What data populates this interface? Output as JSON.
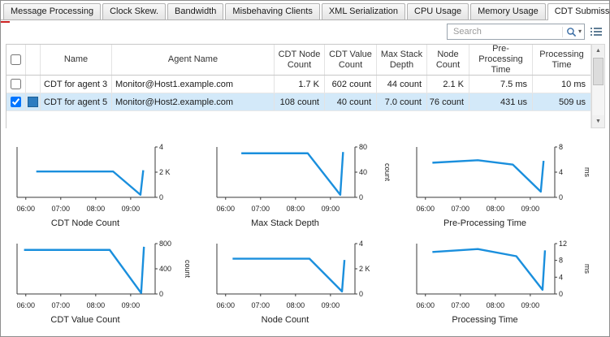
{
  "colors": {
    "series": "#1a8fdd",
    "swatch": "#2d7cc0",
    "selected_row": "#d3e9f9",
    "accent_red": "#cc2222"
  },
  "tabs": [
    {
      "label": "Message Processing",
      "active": false
    },
    {
      "label": "Clock Skew.",
      "active": false
    },
    {
      "label": "Bandwidth",
      "active": false
    },
    {
      "label": "Misbehaving Clients",
      "active": false
    },
    {
      "label": "XML Serialization",
      "active": false
    },
    {
      "label": "CPU Usage",
      "active": false
    },
    {
      "label": "Memory Usage",
      "active": false
    },
    {
      "label": "CDT Submission",
      "active": true
    }
  ],
  "toolbar": {
    "search_placeholder": "Search"
  },
  "table": {
    "columns": [
      "Name",
      "Agent Name",
      "CDT Node Count",
      "CDT Value Count",
      "Max Stack Depth",
      "Node Count",
      "Pre-Processing Time",
      "Processing Time"
    ],
    "rows": [
      {
        "checked": false,
        "selected": false,
        "name": "CDT for agent 3",
        "agent": "Monitor@Host1.example.com",
        "values": [
          "1.7 K",
          "602 count",
          "44 count",
          "2.1 K",
          "7.5 ms",
          "10 ms"
        ]
      },
      {
        "checked": true,
        "selected": true,
        "swatch_color": "#2d7cc0",
        "name": "CDT for agent 5",
        "agent": "Monitor@Host2.example.com",
        "values": [
          "108 count",
          "40 count",
          "7.0 count",
          "76 count",
          "431 us",
          "509 us"
        ]
      }
    ]
  },
  "chart_data": [
    {
      "type": "line",
      "title": "CDT Node Count",
      "x": [
        6.3,
        8.5,
        9.28,
        9.36
      ],
      "y": [
        2.05,
        2.05,
        0.2,
        2.15
      ],
      "xlim": [
        5.75,
        9.7
      ],
      "ylim": [
        0,
        4
      ],
      "xticks": [
        {
          "v": 6,
          "label": "06:00"
        },
        {
          "v": 7,
          "label": "07:00"
        },
        {
          "v": 8,
          "label": "08:00"
        },
        {
          "v": 9,
          "label": "09:00"
        }
      ],
      "yticks": [
        {
          "v": 0,
          "label": "0"
        },
        {
          "v": 2,
          "label": "2 K"
        },
        {
          "v": 4,
          "label": "4"
        }
      ],
      "ylabel": ""
    },
    {
      "type": "line",
      "title": "Max Stack Depth",
      "x": [
        6.45,
        8.35,
        9.28,
        9.36
      ],
      "y": [
        70,
        70,
        4,
        72
      ],
      "xlim": [
        5.75,
        9.7
      ],
      "ylim": [
        0,
        80
      ],
      "xticks": [
        {
          "v": 6,
          "label": "06:00"
        },
        {
          "v": 7,
          "label": "07:00"
        },
        {
          "v": 8,
          "label": "08:00"
        },
        {
          "v": 9,
          "label": "09:00"
        }
      ],
      "yticks": [
        {
          "v": 0,
          "label": "0"
        },
        {
          "v": 40,
          "label": "40"
        },
        {
          "v": 80,
          "label": "80"
        }
      ],
      "ylabel": "count"
    },
    {
      "type": "line",
      "title": "Pre-Processing Time",
      "x": [
        6.2,
        7.5,
        8.5,
        9.3,
        9.38
      ],
      "y": [
        5.5,
        5.9,
        5.2,
        0.9,
        5.8
      ],
      "xlim": [
        5.75,
        9.7
      ],
      "ylim": [
        0,
        8
      ],
      "xticks": [
        {
          "v": 6,
          "label": "06:00"
        },
        {
          "v": 7,
          "label": "07:00"
        },
        {
          "v": 8,
          "label": "08:00"
        },
        {
          "v": 9,
          "label": "09:00"
        }
      ],
      "yticks": [
        {
          "v": 0,
          "label": "0"
        },
        {
          "v": 4,
          "label": "4"
        },
        {
          "v": 8,
          "label": "8"
        }
      ],
      "ylabel": "ms"
    },
    {
      "type": "line",
      "title": "CDT Value Count",
      "x": [
        5.95,
        8.4,
        9.3,
        9.38
      ],
      "y": [
        700,
        700,
        15,
        750
      ],
      "xlim": [
        5.75,
        9.7
      ],
      "ylim": [
        0,
        800
      ],
      "xticks": [
        {
          "v": 6,
          "label": "06:00"
        },
        {
          "v": 7,
          "label": "07:00"
        },
        {
          "v": 8,
          "label": "08:00"
        },
        {
          "v": 9,
          "label": "09:00"
        }
      ],
      "yticks": [
        {
          "v": 0,
          "label": "0"
        },
        {
          "v": 400,
          "label": "400"
        },
        {
          "v": 800,
          "label": "800"
        }
      ],
      "ylabel": "count"
    },
    {
      "type": "line",
      "title": "Node Count",
      "x": [
        6.2,
        8.4,
        9.33,
        9.4
      ],
      "y": [
        2.8,
        2.8,
        0.2,
        2.7
      ],
      "xlim": [
        5.75,
        9.7
      ],
      "ylim": [
        0,
        4
      ],
      "xticks": [
        {
          "v": 6,
          "label": "06:00"
        },
        {
          "v": 7,
          "label": "07:00"
        },
        {
          "v": 8,
          "label": "08:00"
        },
        {
          "v": 9,
          "label": "09:00"
        }
      ],
      "yticks": [
        {
          "v": 0,
          "label": "0"
        },
        {
          "v": 2,
          "label": "2 K"
        },
        {
          "v": 4,
          "label": "4"
        }
      ],
      "ylabel": ""
    },
    {
      "type": "line",
      "title": "Processing Time",
      "x": [
        6.2,
        7.5,
        8.6,
        9.35,
        9.42
      ],
      "y": [
        10.0,
        10.7,
        9.0,
        1.0,
        10.4
      ],
      "xlim": [
        5.75,
        9.7
      ],
      "ylim": [
        0,
        12
      ],
      "xticks": [
        {
          "v": 6,
          "label": "06:00"
        },
        {
          "v": 7,
          "label": "07:00"
        },
        {
          "v": 8,
          "label": "08:00"
        },
        {
          "v": 9,
          "label": "09:00"
        }
      ],
      "yticks": [
        {
          "v": 0,
          "label": "0"
        },
        {
          "v": 4,
          "label": "4"
        },
        {
          "v": 8,
          "label": "8"
        },
        {
          "v": 12,
          "label": "12"
        }
      ],
      "ylabel": "ms"
    }
  ]
}
